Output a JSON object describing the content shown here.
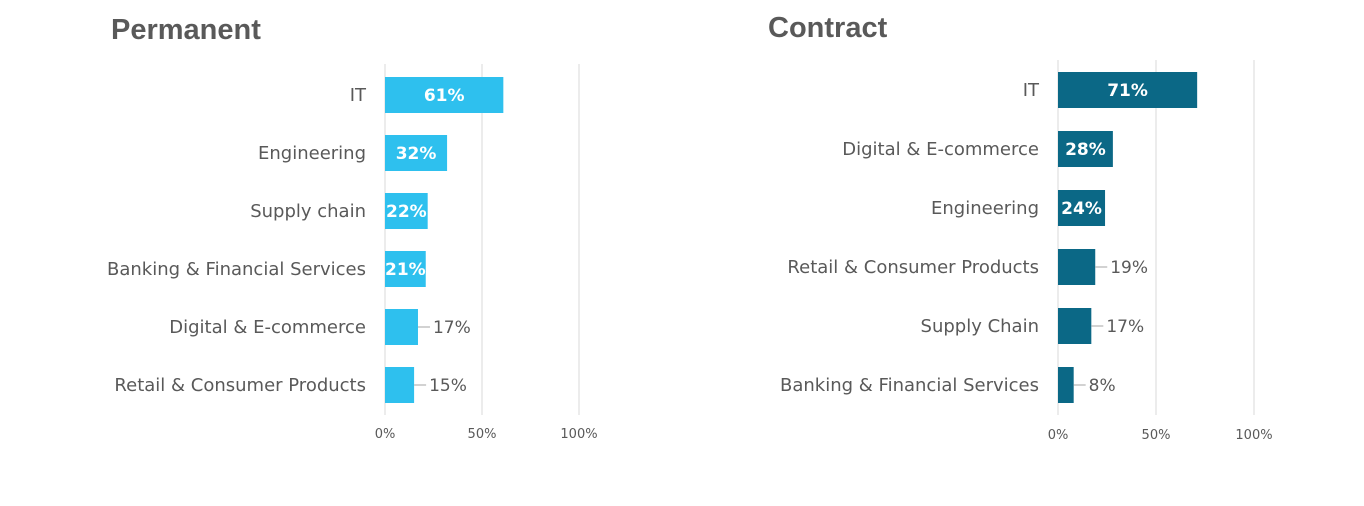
{
  "chart_data": [
    {
      "type": "bar",
      "orientation": "horizontal",
      "title": "Permanent",
      "categories": [
        "IT",
        "Engineering",
        "Supply chain",
        "Banking & Financial Services",
        "Digital & E-commerce",
        "Retail & Consumer Products"
      ],
      "values": [
        61,
        32,
        22,
        21,
        17,
        15
      ],
      "value_labels": [
        "61%",
        "32%",
        "22%",
        "21%",
        "17%",
        "15%"
      ],
      "xlim": [
        0,
        100
      ],
      "x_ticks": [
        "0%",
        "50%",
        "100%"
      ],
      "grid": true,
      "color": "#2EC0EE"
    },
    {
      "type": "bar",
      "orientation": "horizontal",
      "title": "Contract",
      "categories": [
        "IT",
        "Digital & E-commerce",
        "Engineering",
        "Retail & Consumer Products",
        "Supply Chain",
        "Banking & Financial Services"
      ],
      "values": [
        71,
        28,
        24,
        19,
        17,
        8
      ],
      "value_labels": [
        "71%",
        "28%",
        "24%",
        "19%",
        "17%",
        "8%"
      ],
      "xlim": [
        0,
        100
      ],
      "x_ticks": [
        "0%",
        "50%",
        "100%"
      ],
      "grid": true,
      "color": "#0B6886"
    }
  ]
}
